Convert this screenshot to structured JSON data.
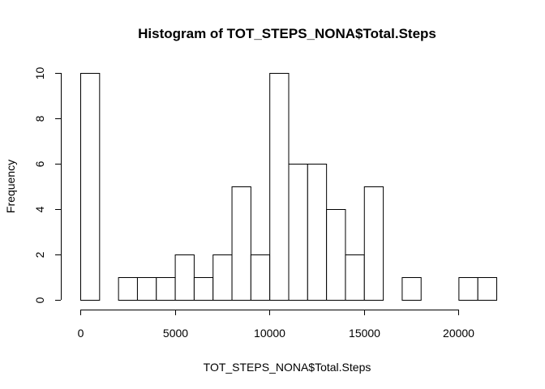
{
  "chart_data": {
    "type": "bar",
    "title": "Histogram of TOT_STEPS_NONA$Total.Steps",
    "xlabel": "TOT_STEPS_NONA$Total.Steps",
    "ylabel": "Frequency",
    "bin_width": 1000,
    "bins": [
      {
        "start": 0,
        "end": 1000,
        "count": 10
      },
      {
        "start": 1000,
        "end": 2000,
        "count": 0
      },
      {
        "start": 2000,
        "end": 3000,
        "count": 1
      },
      {
        "start": 3000,
        "end": 4000,
        "count": 1
      },
      {
        "start": 4000,
        "end": 5000,
        "count": 1
      },
      {
        "start": 5000,
        "end": 6000,
        "count": 2
      },
      {
        "start": 6000,
        "end": 7000,
        "count": 1
      },
      {
        "start": 7000,
        "end": 8000,
        "count": 2
      },
      {
        "start": 8000,
        "end": 9000,
        "count": 5
      },
      {
        "start": 9000,
        "end": 10000,
        "count": 2
      },
      {
        "start": 10000,
        "end": 11000,
        "count": 10
      },
      {
        "start": 11000,
        "end": 12000,
        "count": 6
      },
      {
        "start": 12000,
        "end": 13000,
        "count": 6
      },
      {
        "start": 13000,
        "end": 14000,
        "count": 4
      },
      {
        "start": 14000,
        "end": 15000,
        "count": 2
      },
      {
        "start": 15000,
        "end": 16000,
        "count": 5
      },
      {
        "start": 16000,
        "end": 17000,
        "count": 0
      },
      {
        "start": 17000,
        "end": 18000,
        "count": 1
      },
      {
        "start": 18000,
        "end": 19000,
        "count": 0
      },
      {
        "start": 19000,
        "end": 20000,
        "count": 0
      },
      {
        "start": 20000,
        "end": 21000,
        "count": 1
      },
      {
        "start": 21000,
        "end": 22000,
        "count": 1
      }
    ],
    "xlim": [
      0,
      22000
    ],
    "ylim": [
      0,
      10
    ],
    "x_ticks": [
      0,
      5000,
      10000,
      15000,
      20000
    ],
    "y_ticks": [
      0,
      2,
      4,
      6,
      8,
      10
    ],
    "grid": false,
    "legend": "none"
  }
}
